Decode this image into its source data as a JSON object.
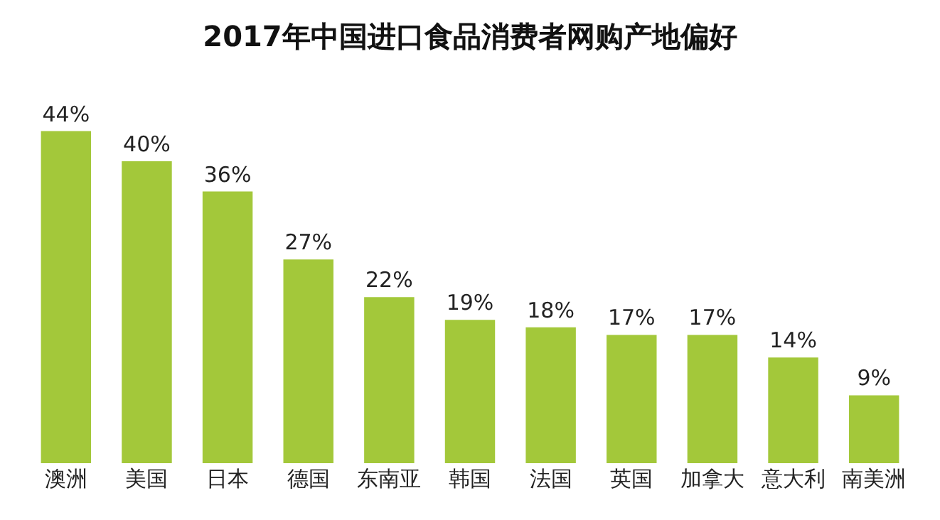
{
  "chart_data": {
    "type": "bar",
    "title": "2017年中国进口食品消费者网购产地偏好",
    "categories": [
      "澳洲",
      "美国",
      "日本",
      "德国",
      "东南亚",
      "韩国",
      "法国",
      "英国",
      "加拿大",
      "意大利",
      "南美洲"
    ],
    "values": [
      44,
      40,
      36,
      27,
      22,
      19,
      18,
      17,
      17,
      14,
      9
    ],
    "value_labels": [
      "44%",
      "40%",
      "36%",
      "27%",
      "22%",
      "19%",
      "18%",
      "17%",
      "17%",
      "14%",
      "9%"
    ],
    "color": "#a3c83a",
    "tick_labels": "x",
    "legend": false
  }
}
